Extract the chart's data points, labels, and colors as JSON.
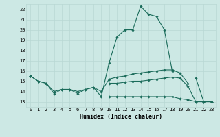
{
  "x": [
    0,
    1,
    2,
    3,
    4,
    5,
    6,
    7,
    8,
    9,
    10,
    11,
    12,
    13,
    14,
    15,
    16,
    17,
    18,
    19,
    20,
    21,
    22,
    23
  ],
  "line1": [
    15.5,
    15.0,
    14.8,
    13.8,
    14.2,
    14.2,
    13.8,
    14.2,
    14.4,
    13.5,
    16.8,
    19.3,
    20.0,
    20.0,
    22.3,
    21.5,
    21.3,
    20.0,
    16.0,
    null,
    null,
    15.3,
    13.0,
    13.0
  ],
  "line2": [
    15.5,
    15.0,
    14.8,
    14.0,
    14.2,
    14.2,
    14.0,
    14.2,
    14.4,
    14.0,
    15.2,
    15.4,
    15.5,
    15.7,
    15.8,
    15.9,
    16.0,
    16.1,
    16.1,
    15.8,
    14.8,
    null,
    null,
    null
  ],
  "line3": [
    15.5,
    null,
    null,
    null,
    null,
    null,
    null,
    null,
    null,
    null,
    14.8,
    14.8,
    14.9,
    15.0,
    15.0,
    15.1,
    15.2,
    15.3,
    15.4,
    15.3,
    14.5,
    13.0,
    13.0,
    13.0
  ],
  "line4": [
    15.5,
    null,
    null,
    null,
    null,
    null,
    null,
    null,
    null,
    null,
    13.5,
    13.5,
    13.5,
    13.5,
    13.5,
    13.5,
    13.5,
    13.5,
    13.5,
    13.3,
    13.2,
    13.0,
    13.0,
    13.0
  ],
  "xlabel": "Humidex (Indice chaleur)",
  "xlim": [
    -0.5,
    23.5
  ],
  "ylim": [
    12.5,
    22.5
  ],
  "yticks": [
    13,
    14,
    15,
    16,
    17,
    18,
    19,
    20,
    21,
    22
  ],
  "xticks": [
    0,
    1,
    2,
    3,
    4,
    5,
    6,
    7,
    8,
    9,
    10,
    11,
    12,
    13,
    14,
    15,
    16,
    17,
    18,
    19,
    20,
    21,
    22,
    23
  ],
  "line_color": "#1a6b5a",
  "bg_color": "#cce8e4",
  "grid_color": "#b8d8d4",
  "grid_minor_color": "#c8e0dc"
}
